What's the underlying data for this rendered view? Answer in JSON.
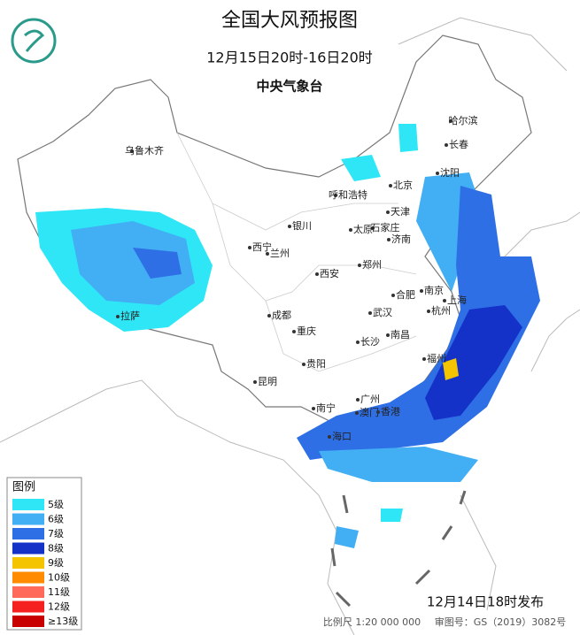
{
  "header": {
    "title": "全国大风预报图",
    "subtitle": "12月15日20时-16日20时",
    "issuer": "中央气象台"
  },
  "legend": {
    "title": "图例",
    "items": [
      {
        "label": "5级",
        "color": "#2ee6f6"
      },
      {
        "label": "6级",
        "color": "#42aef4"
      },
      {
        "label": "7级",
        "color": "#2f6fe6"
      },
      {
        "label": "8级",
        "color": "#1532c8"
      },
      {
        "label": "9级",
        "color": "#f5c400"
      },
      {
        "label": "10级",
        "color": "#ff8c00"
      },
      {
        "label": "11级",
        "color": "#ff6a5a"
      },
      {
        "label": "12级",
        "color": "#f52020"
      },
      {
        "label": "≥13级",
        "color": "#c80000"
      }
    ]
  },
  "cities": [
    "哈尔滨",
    "长春",
    "沈阳",
    "乌鲁木齐",
    "北京",
    "天津",
    "呼和浩特",
    "石家庄",
    "太原",
    "济南",
    "银川",
    "西宁",
    "兰州",
    "郑州",
    "西安",
    "南京",
    "合肥",
    "上海",
    "杭州",
    "成都",
    "武汉",
    "重庆",
    "长沙",
    "南昌",
    "福州",
    "拉萨",
    "贵阳",
    "昆明",
    "广州",
    "南宁",
    "澳门",
    "香港",
    "海口"
  ],
  "footer": {
    "issued": "12月14日18时发布",
    "scale": "比例尺 1:20 000 000",
    "approval": "审图号：GS（2019）3082号"
  }
}
